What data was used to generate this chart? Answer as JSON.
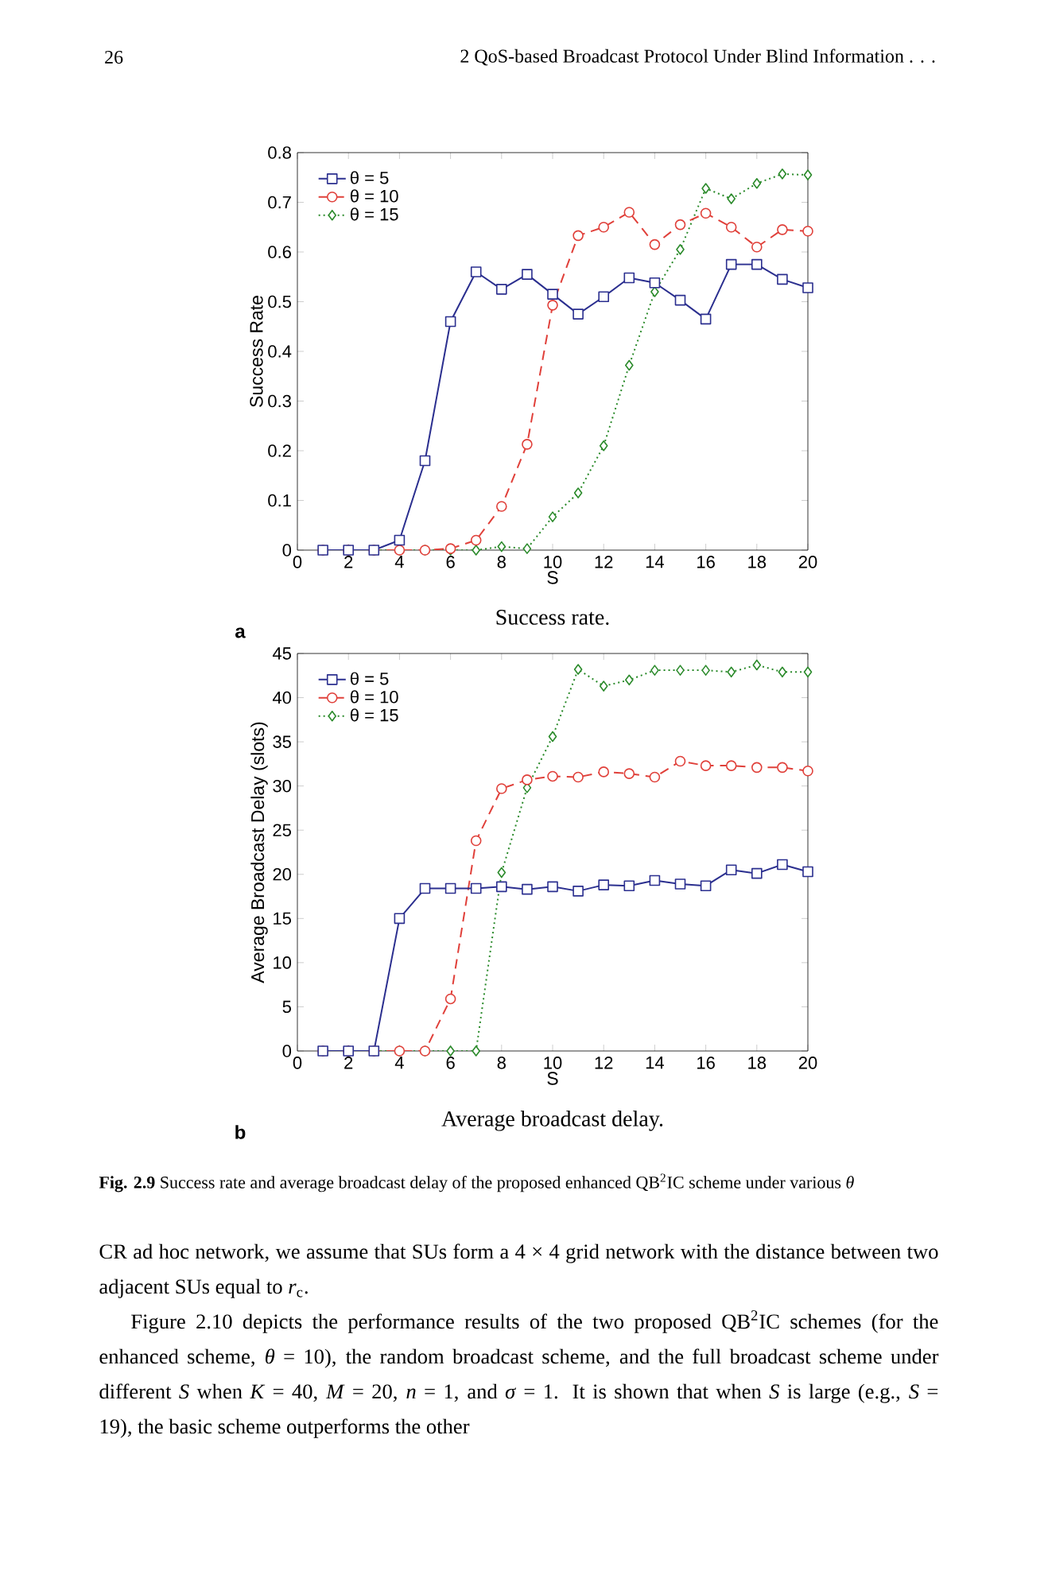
{
  "chart_data": [
    {
      "type": "line",
      "title": "Success rate.",
      "xlabel": "S",
      "ylabel": "Success Rate",
      "x": [
        1,
        2,
        3,
        4,
        5,
        6,
        7,
        8,
        9,
        10,
        11,
        12,
        13,
        14,
        15,
        16,
        17,
        18,
        19,
        20
      ],
      "series": [
        {
          "name": "θ = 5",
          "color": "#2b2f8f",
          "marker": "square",
          "line_style": "solid",
          "values": [
            0,
            0,
            0,
            0.02,
            0.18,
            0.46,
            0.56,
            0.525,
            0.555,
            0.515,
            0.475,
            0.51,
            0.548,
            0.538,
            0.503,
            0.465,
            0.575,
            0.575,
            0.545,
            0.528
          ]
        },
        {
          "name": "θ = 10",
          "color": "#e0403a",
          "marker": "circle",
          "line_style": "dashed",
          "values": [
            0,
            0,
            0,
            0,
            0,
            0.003,
            0.02,
            0.088,
            0.213,
            0.493,
            0.633,
            0.65,
            0.68,
            0.615,
            0.655,
            0.678,
            0.65,
            0.61,
            0.645,
            0.642
          ]
        },
        {
          "name": "θ = 15",
          "color": "#2a8a2a",
          "marker": "diamond",
          "line_style": "dotted",
          "values": [
            0,
            0,
            0,
            0,
            0,
            0,
            0,
            0.007,
            0.003,
            0.067,
            0.115,
            0.21,
            0.372,
            0.52,
            0.605,
            0.728,
            0.707,
            0.738,
            0.757,
            0.755
          ]
        }
      ],
      "xlim": [
        0,
        20
      ],
      "xticks": [
        0,
        2,
        4,
        6,
        8,
        10,
        12,
        14,
        16,
        18,
        20
      ],
      "ylim": [
        0,
        0.8
      ],
      "yticks": [
        0,
        0.1,
        0.2,
        0.3,
        0.4,
        0.5,
        0.6,
        0.7,
        0.8
      ],
      "legend": "top left",
      "grid": false,
      "annotations": [
        "26",
        "2   QoS-based Broadcast Protocol Under Blind Information . . .",
        "a"
      ]
    },
    {
      "type": "line",
      "title": "Average broadcast delay.",
      "xlabel": "S",
      "ylabel": "Average Broadcast Delay (slots)",
      "x": [
        1,
        2,
        3,
        4,
        5,
        6,
        7,
        8,
        9,
        10,
        11,
        12,
        13,
        14,
        15,
        16,
        17,
        18,
        19,
        20
      ],
      "series": [
        {
          "name": "θ = 5",
          "color": "#2b2f8f",
          "marker": "square",
          "line_style": "solid",
          "values": [
            0,
            0,
            0,
            15,
            18.4,
            18.4,
            18.4,
            18.6,
            18.3,
            18.6,
            18.1,
            18.8,
            18.7,
            19.3,
            18.9,
            18.7,
            20.5,
            20.1,
            21.1,
            20.3
          ]
        },
        {
          "name": "θ = 10",
          "color": "#e0403a",
          "marker": "circle",
          "line_style": "dashed",
          "values": [
            0,
            0,
            0,
            0,
            0,
            5.9,
            23.8,
            29.7,
            30.7,
            31.1,
            31,
            31.6,
            31.4,
            31,
            32.8,
            32.3,
            32.3,
            32.1,
            32.1,
            31.7
          ]
        },
        {
          "name": "θ = 15",
          "color": "#2a8a2a",
          "marker": "diamond",
          "line_style": "dotted",
          "values": [
            0,
            0,
            0,
            0,
            0,
            0,
            0,
            20.2,
            29.8,
            35.6,
            43.2,
            41.3,
            42,
            43.1,
            43.1,
            43.1,
            42.9,
            43.7,
            42.9,
            42.9
          ]
        }
      ],
      "xlim": [
        0,
        20
      ],
      "xticks": [
        0,
        2,
        4,
        6,
        8,
        10,
        12,
        14,
        16,
        18,
        20
      ],
      "ylim": [
        0,
        45
      ],
      "yticks": [
        0,
        5,
        10,
        15,
        20,
        25,
        30,
        35,
        40,
        45
      ],
      "legend": "top left",
      "grid": false,
      "annotations": [
        "b",
        "**Fig. 2.9** Success rate and average broadcast delay of the proposed enhanced QB$^{2}$IC scheme under various *θ*",
        "CR ad hoc network, we assume that SUs form a 4 × 4 grid network with the distance between two adjacent SUs equal to *r*$_{c}$.",
        "Figure 2.10 depicts the performance results of the two proposed QB$^{2}$IC schemes (for the enhanced scheme, *θ* = 10), the random broadcast scheme, and the full broadcast scheme under different *S* when *K* = 40, *M* = 20, *n* = 1, and *σ* = 1. It is shown that when *S* is large (e.g., *S* = 19), the basic scheme outperforms the other"
      ]
    }
  ]
}
